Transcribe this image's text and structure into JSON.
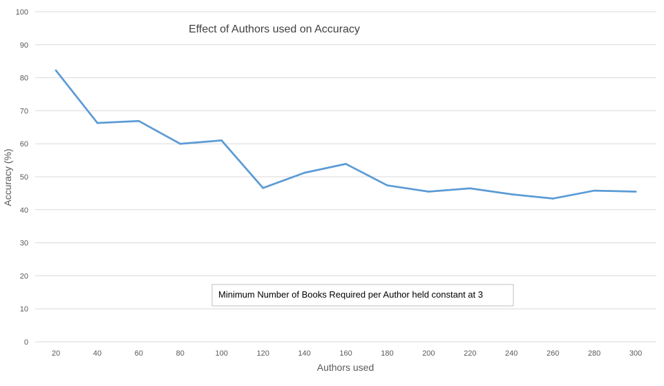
{
  "chart_data": {
    "type": "line",
    "title": "Effect of Authors used on Accuracy",
    "xlabel": "Authors used",
    "ylabel": "Accuracy (%)",
    "x": [
      20,
      40,
      60,
      80,
      100,
      120,
      140,
      160,
      180,
      200,
      220,
      240,
      260,
      280,
      300
    ],
    "series": [
      {
        "name": "",
        "values": [
          82.2,
          66.3,
          66.9,
          60.0,
          61.0,
          46.6,
          51.2,
          53.9,
          47.4,
          45.5,
          46.5,
          44.7,
          43.4,
          45.8,
          45.5
        ],
        "color": "#5B9BD5"
      }
    ],
    "ylim": [
      0,
      100
    ],
    "yticks": [
      0,
      10,
      20,
      30,
      40,
      50,
      60,
      70,
      80,
      90,
      100
    ],
    "grid": true,
    "legend": "none",
    "annotation": "Minimum Number of Books Required per Author held constant at 3"
  },
  "colors": {
    "line": "#5B9BD5",
    "grid": "#d9d9d9",
    "text": "#595959"
  }
}
